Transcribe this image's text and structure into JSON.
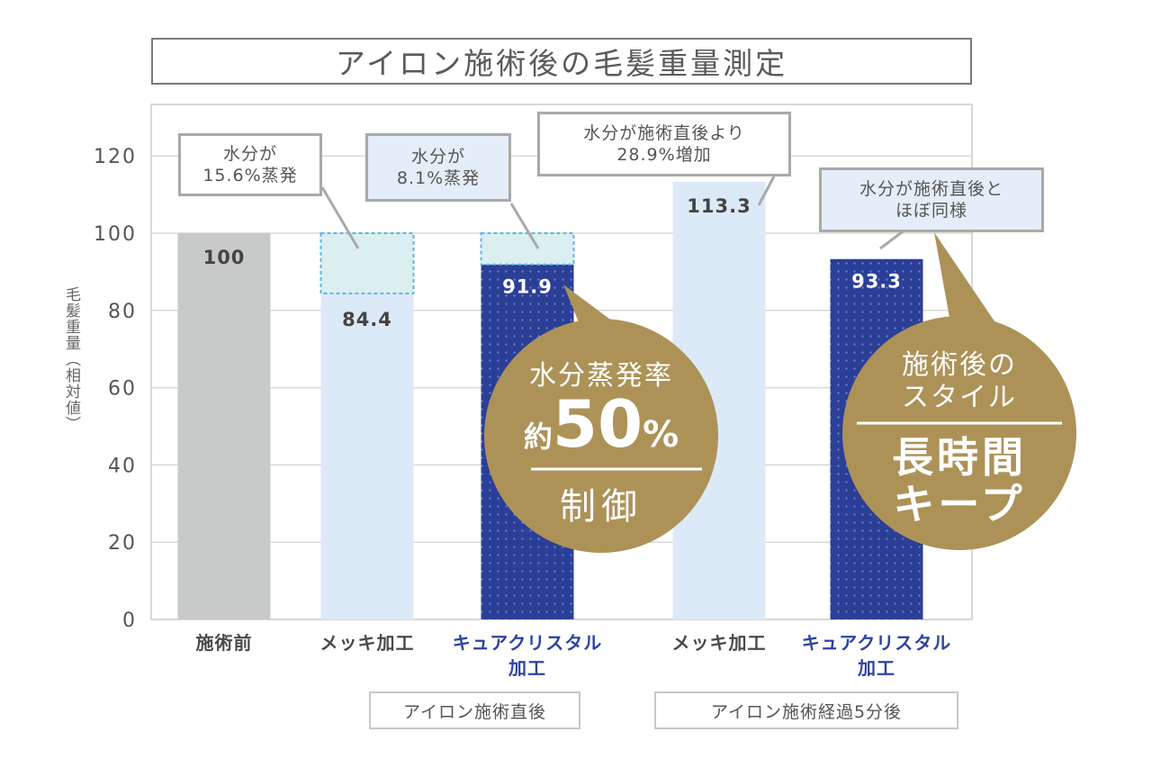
{
  "chart_data": {
    "type": "bar",
    "title": "アイロン施術後の毛髪重量測定",
    "ylabel": "毛髪重量（相対値）",
    "ylim": [
      0,
      130
    ],
    "yticks": [
      "0",
      "20",
      "40",
      "60",
      "80",
      "100",
      "120"
    ],
    "categories": [
      {
        "label": "施術前",
        "color": "#4a4a4a"
      },
      {
        "label": "メッキ加工",
        "color": "#4a4a4a"
      },
      {
        "label": "キュアクリスタル\n加工",
        "color": "#2f43a0"
      },
      {
        "label": "メッキ加工",
        "color": "#4a4a4a"
      },
      {
        "label": "キュアクリスタル\n加工",
        "color": "#2f43a0"
      }
    ],
    "values": [
      100,
      84.4,
      91.9,
      113.3,
      93.3
    ],
    "value_labels": [
      "100",
      "84.4",
      "91.9",
      "113.3",
      "93.3"
    ],
    "bar_styles": [
      "gray",
      "light",
      "dotted",
      "light",
      "dotted"
    ],
    "evaporated_from": [
      null,
      100,
      100,
      null,
      null
    ],
    "grid": true,
    "groups": [
      "アイロン施術直後",
      "アイロン施術経過5分後"
    ],
    "annotations": [
      {
        "text": "水分が\n15.6%蒸発",
        "style": "white"
      },
      {
        "text": "水分が\n8.1%蒸発",
        "style": "blue"
      },
      {
        "text": "水分が施術直後より\n28.9%増加",
        "style": "white"
      },
      {
        "text": "水分が施術直後と\nほぼ同様",
        "style": "blue"
      }
    ],
    "bubbles": [
      {
        "top": "水分蒸発率",
        "prefix": "約",
        "big": "50",
        "unit": "%",
        "bottom": "制御"
      },
      {
        "top": "施術後の\nスタイル",
        "bottom": "長時間\nキープ"
      }
    ]
  },
  "colors": {
    "gray_bar": "#c8c9c9",
    "light_bar": "#dce9f7",
    "dark_bar": "#2b3f96",
    "bubble": "#ad9258",
    "grid": "#d8d8d8",
    "evap_fill": "#dbeef0",
    "evap_border": "#5bb7e6"
  }
}
